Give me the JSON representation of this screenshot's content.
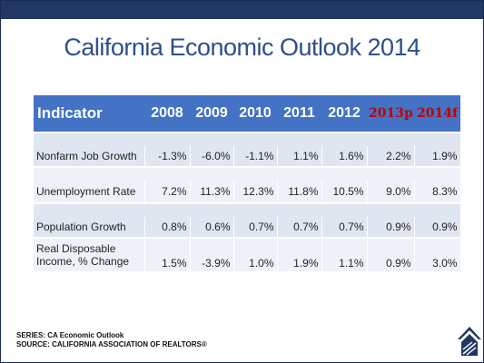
{
  "title": "California Economic Outlook 2014",
  "table": {
    "headers": [
      "Indicator",
      "2008",
      "2009",
      "2010",
      "2011",
      "2012",
      "2013p",
      "2014f"
    ],
    "rows": [
      {
        "label": "Nonfarm Job Growth",
        "values": [
          "-1.3%",
          "-6.0%",
          "-1.1%",
          "1.1%",
          "1.6%",
          "2.2%",
          "1.9%"
        ]
      },
      {
        "label": "Unemployment Rate",
        "values": [
          "7.2%",
          "11.3%",
          "12.3%",
          "11.8%",
          "10.5%",
          "9.0%",
          "8.3%"
        ]
      },
      {
        "label": "Population Growth",
        "values": [
          "0.8%",
          "0.6%",
          "0.7%",
          "0.7%",
          "0.7%",
          "0.9%",
          "0.9%"
        ]
      },
      {
        "label": "Real Disposable Income, % Change",
        "values": [
          "1.5%",
          "-3.9%",
          "1.0%",
          "1.9%",
          "1.1%",
          "0.9%",
          "3.0%"
        ]
      }
    ]
  },
  "footer": {
    "series": "SERIES: CA Economic Outlook",
    "source": "SOURCE:  CALIFORNIA ASSOCIATION OF REALTORS®"
  },
  "colors": {
    "header_bg": "#4472c4",
    "projection_text": "#c00000",
    "title_text": "#2e4f8a",
    "row_band_dark": "#dfe6f2",
    "row_band_light": "#eef2f8"
  },
  "icons": {
    "logo": "car-logo-icon"
  }
}
